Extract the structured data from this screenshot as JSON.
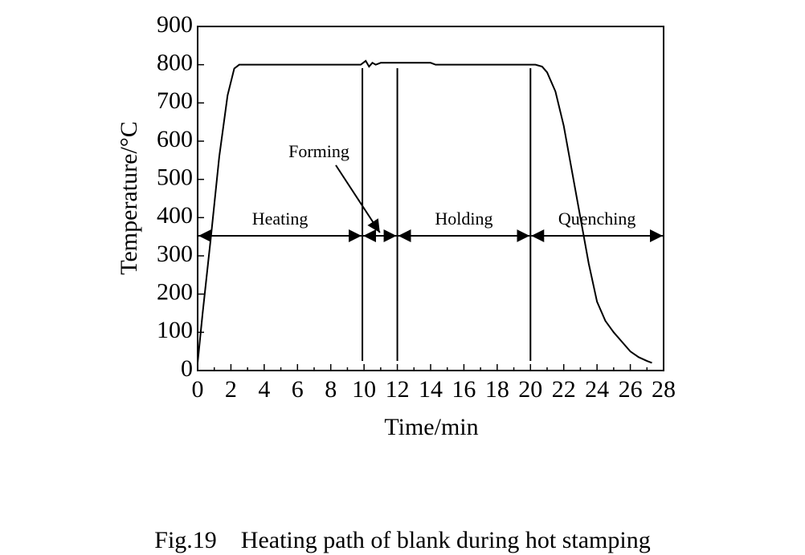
{
  "chart_data": {
    "type": "line",
    "x_label": "Time/min",
    "y_label": "Temperature/°C",
    "caption": "Fig.19    Heating path of blank during hot stamping",
    "x": [
      0,
      0.3,
      0.8,
      1.3,
      1.8,
      2.2,
      2.5,
      9.8,
      10.1,
      10.3,
      10.5,
      10.7,
      11,
      14,
      14.3,
      20.3,
      20.7,
      21,
      21.5,
      22,
      22.5,
      23,
      23.5,
      24,
      24.5,
      25,
      25.5,
      26,
      26.5,
      27,
      27.3
    ],
    "series": [
      {
        "color": "#000000",
        "values": [
          20,
          150,
          350,
          560,
          720,
          790,
          800,
          800,
          810,
          795,
          805,
          800,
          805,
          805,
          800,
          800,
          795,
          780,
          730,
          640,
          520,
          400,
          280,
          180,
          130,
          100,
          75,
          50,
          35,
          25,
          20
        ]
      }
    ],
    "xlim": [
      0,
      28
    ],
    "xticks": [
      0,
      2,
      4,
      6,
      8,
      10,
      12,
      14,
      16,
      18,
      20,
      22,
      24,
      26,
      28
    ],
    "ylim": [
      0,
      900
    ],
    "yticks": [
      0,
      100,
      200,
      300,
      400,
      500,
      600,
      700,
      800,
      900
    ],
    "phases": [
      {
        "label": "Heating",
        "start": 0,
        "end": 9.9
      },
      {
        "label": "Forming",
        "start": 9.9,
        "end": 12
      },
      {
        "label": "Holding",
        "start": 12,
        "end": 20
      },
      {
        "label": "Quenching",
        "start": 20,
        "end": 28
      }
    ]
  }
}
